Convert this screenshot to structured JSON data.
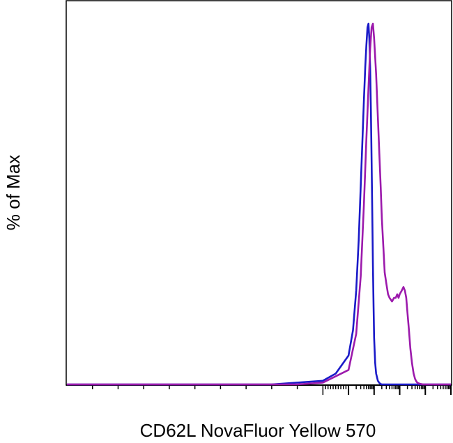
{
  "chart_data": {
    "type": "line",
    "title": "",
    "xlabel": "CD62L NovaFluor Yellow 570",
    "ylabel": "% of Max",
    "x_scale": "log",
    "xlim": [
      -1000,
      1000000
    ],
    "ylim": [
      0,
      100
    ],
    "grid": false,
    "legend": "none",
    "x_tick_labels": [],
    "y_tick_labels": [],
    "series": [
      {
        "color": "#1a1ac8",
        "x": [
          -1000,
          -200,
          0,
          50,
          100,
          150,
          200,
          250,
          300,
          350,
          400,
          450,
          500,
          550,
          600,
          650,
          700,
          750,
          800,
          850,
          900,
          950,
          1000,
          1100,
          1200,
          1400,
          1600,
          1800,
          2000,
          3000,
          10000,
          100000,
          1000000
        ],
        "y": [
          0,
          0,
          1,
          3,
          8,
          15,
          26,
          40,
          55,
          68,
          79,
          88,
          94,
          99,
          100,
          96,
          88,
          76,
          62,
          47,
          33,
          22,
          13,
          6,
          3,
          1,
          0.4,
          0.1,
          0,
          0,
          0,
          0,
          0
        ]
      },
      {
        "color": "#9c1aac",
        "x": [
          -1000,
          -100,
          0,
          100,
          200,
          300,
          400,
          500,
          600,
          700,
          800,
          900,
          1000,
          1200,
          1400,
          1600,
          1800,
          2000,
          2300,
          2600,
          3000,
          3500,
          4000,
          5000,
          6000,
          7000,
          8000,
          9000,
          10000,
          12000,
          14000,
          16000,
          18000,
          20000,
          23000,
          26000,
          30000,
          35000,
          40000,
          45000,
          50000,
          60000,
          70000,
          80000,
          100000,
          1000000
        ],
        "y": [
          0,
          0,
          0.5,
          4,
          14,
          30,
          50,
          68,
          82,
          93,
          99,
          100,
          96,
          86,
          74,
          64,
          55,
          46,
          38,
          31,
          28,
          25,
          24,
          23,
          24,
          24,
          25,
          24,
          25,
          26,
          27,
          26,
          24,
          20,
          15,
          10,
          6,
          3,
          1.5,
          0.8,
          0.4,
          0.2,
          0.1,
          0,
          0,
          0
        ]
      }
    ]
  }
}
